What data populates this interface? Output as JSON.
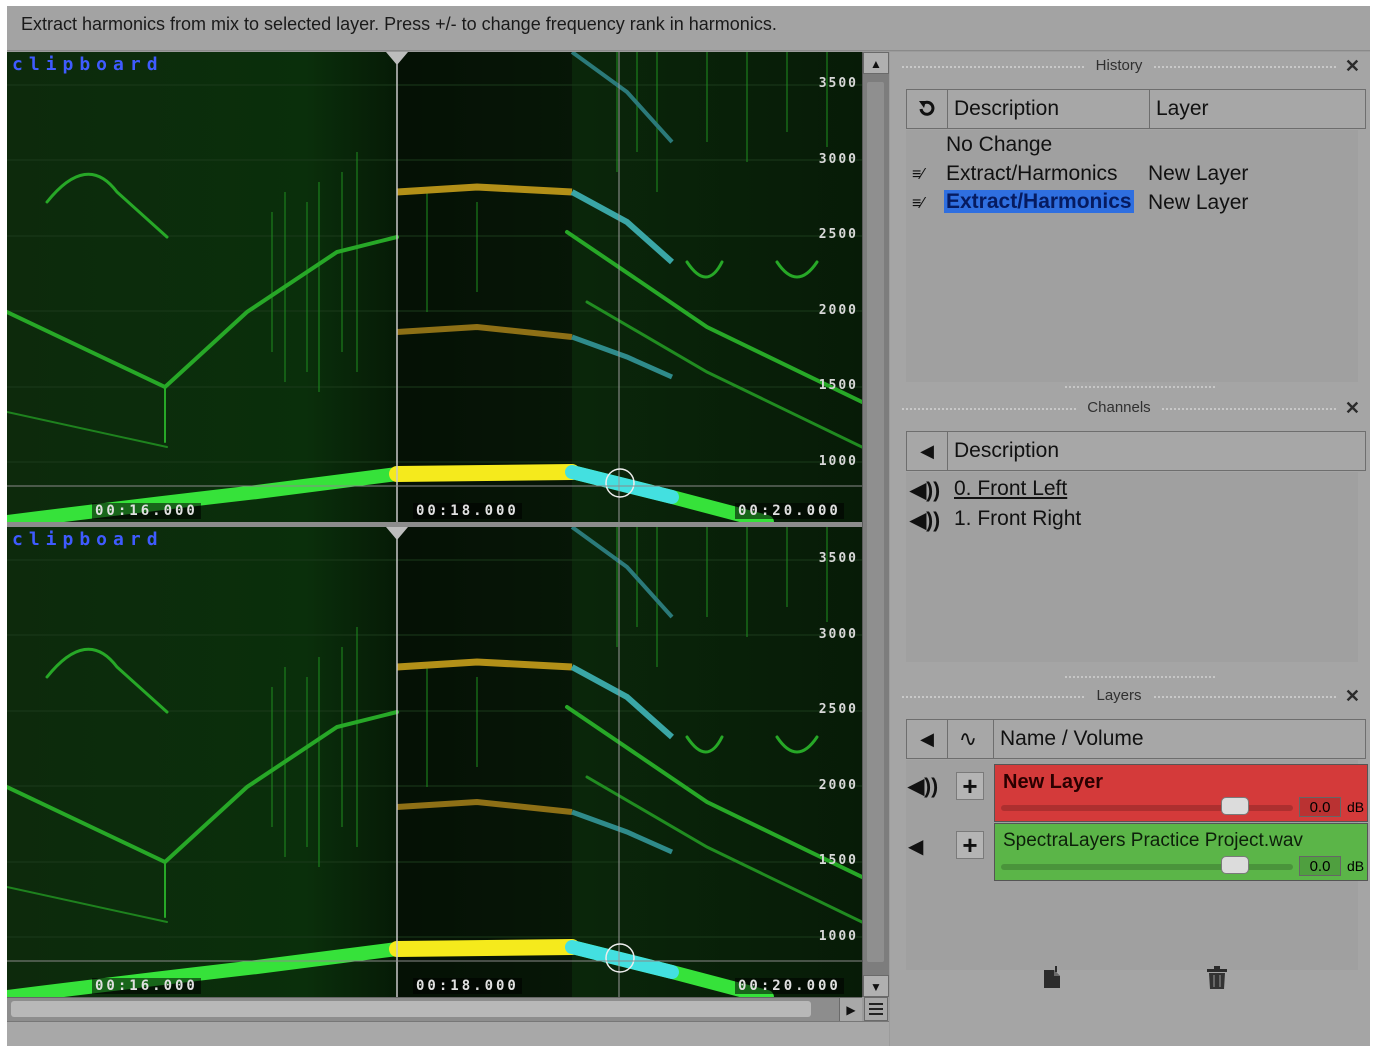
{
  "status_message": "Extract harmonics from mix to selected layer. Press +/- to change frequency rank in harmonics.",
  "spectral": {
    "clip_label": "clipboard",
    "freq_labels": [
      "3500",
      "3000",
      "2500",
      "2000",
      "1500",
      "1000"
    ],
    "time_labels": [
      "00:16.000",
      "00:18.000",
      "00:20.000"
    ]
  },
  "history": {
    "title": "History",
    "columns": {
      "description": "Description",
      "layer": "Layer"
    },
    "rows": [
      {
        "description": "No Change",
        "layer": ""
      },
      {
        "description": "Extract/Harmonics",
        "layer": "New Layer"
      },
      {
        "description": "Extract/Harmonics",
        "layer": "New Layer",
        "selected": true
      }
    ]
  },
  "channels": {
    "title": "Channels",
    "columns": {
      "description": "Description"
    },
    "rows": [
      "0. Front Left",
      "1. Front Right"
    ]
  },
  "layers": {
    "title": "Layers",
    "columns": {
      "name": "Name / Volume"
    },
    "items": [
      {
        "name": "New Layer",
        "volume": "0.0",
        "unit": "dB",
        "color": "#d43a3a"
      },
      {
        "name": "SpectraLayers Practice Project.wav",
        "volume": "0.0",
        "unit": "dB",
        "color": "#5bb548"
      }
    ]
  },
  "icons": [
    "undo-icon",
    "speaker-icon",
    "waveform-icon",
    "plus-icon",
    "new-layer-icon",
    "trash-icon",
    "close-icon"
  ]
}
